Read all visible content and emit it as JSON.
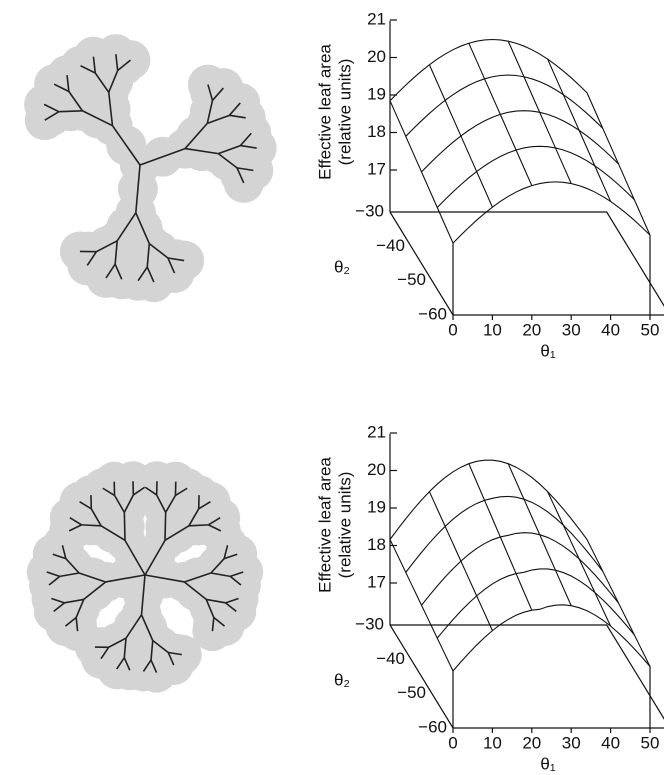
{
  "panels": [
    {
      "z_label": "Effective leaf area",
      "z_unit": "(relative units)",
      "z_ticks": [
        "21",
        "20",
        "19",
        "18",
        "17"
      ],
      "y_label": "θ₂",
      "y_ticks": [
        "−30",
        "−40",
        "−50",
        "−60"
      ],
      "x_label": "θ₁",
      "x_ticks": [
        "0",
        "10",
        "20",
        "30",
        "40",
        "50"
      ]
    },
    {
      "z_label": "Effective leaf area",
      "z_unit": "(relative units)",
      "z_ticks": [
        "21",
        "20",
        "19",
        "18",
        "17"
      ],
      "y_label": "θ₂",
      "y_ticks": [
        "−30",
        "−40",
        "−50",
        "−60"
      ],
      "x_label": "θ₁",
      "x_ticks": [
        "0",
        "10",
        "20",
        "30",
        "40",
        "50"
      ]
    }
  ]
}
